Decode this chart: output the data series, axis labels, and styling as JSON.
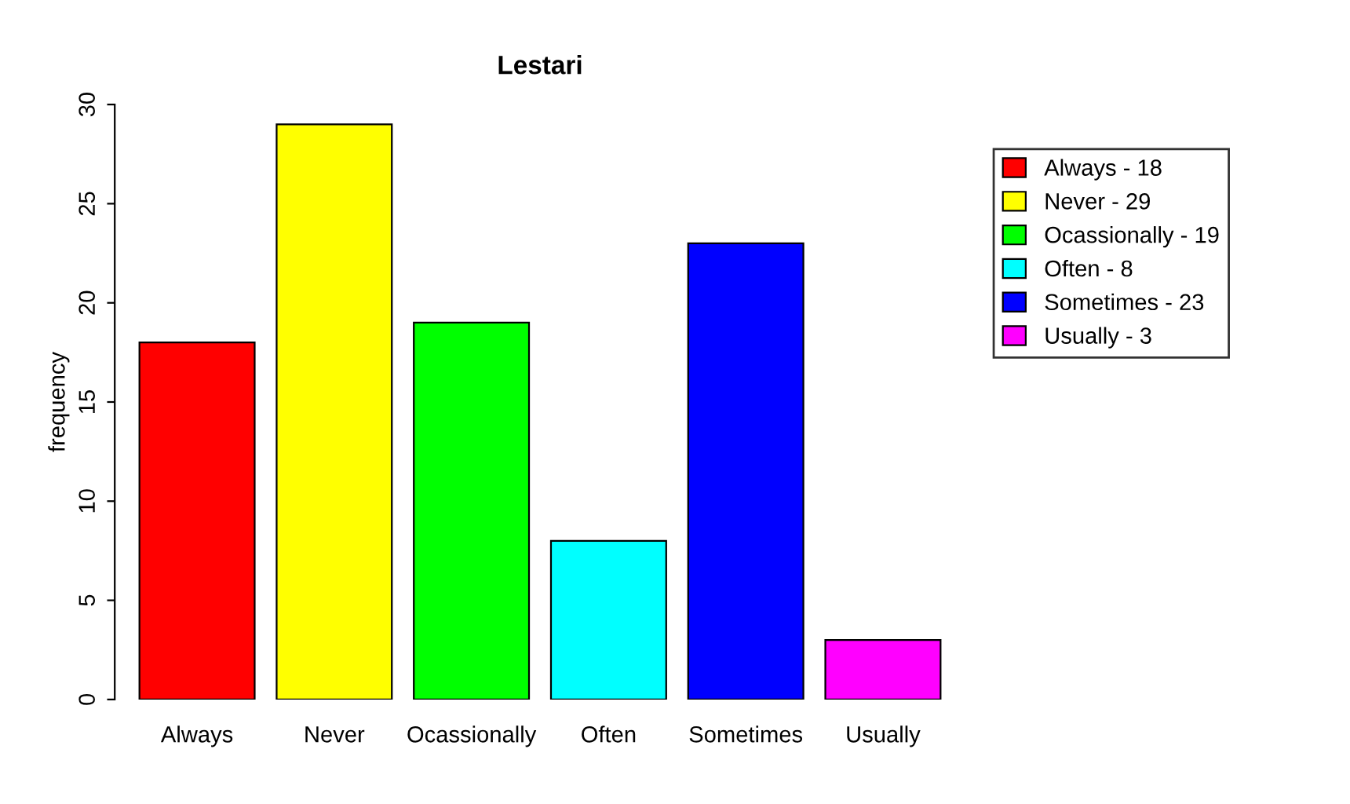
{
  "chart_data": {
    "type": "bar",
    "title": "Lestari",
    "ylabel": "frequency",
    "categories": [
      "Always",
      "Never",
      "Ocassionally",
      "Often",
      "Sometimes",
      "Usually"
    ],
    "stacked": true,
    "series": [
      {
        "name": "Always - 18",
        "color": "#ff0000",
        "values": [
          18,
          null,
          null,
          null,
          null,
          null
        ]
      },
      {
        "name": "Never - 29",
        "color": "#ffff00",
        "values": [
          null,
          29,
          null,
          null,
          null,
          null
        ]
      },
      {
        "name": "Ocassionally - 19",
        "color": "#00ff00",
        "values": [
          null,
          null,
          19,
          null,
          null,
          null
        ]
      },
      {
        "name": "Often - 8",
        "color": "#00ffff",
        "values": [
          null,
          null,
          null,
          8,
          null,
          null
        ]
      },
      {
        "name": "Sometimes - 23",
        "color": "#0000ff",
        "values": [
          null,
          null,
          null,
          null,
          23,
          null
        ]
      },
      {
        "name": "Usually - 3",
        "color": "#ff00ff",
        "values": [
          null,
          null,
          null,
          null,
          null,
          3
        ]
      }
    ],
    "ylim": [
      0,
      30
    ],
    "yticks": [
      0,
      5,
      10,
      15,
      20,
      25,
      30
    ],
    "grid": false,
    "legend": "right"
  }
}
